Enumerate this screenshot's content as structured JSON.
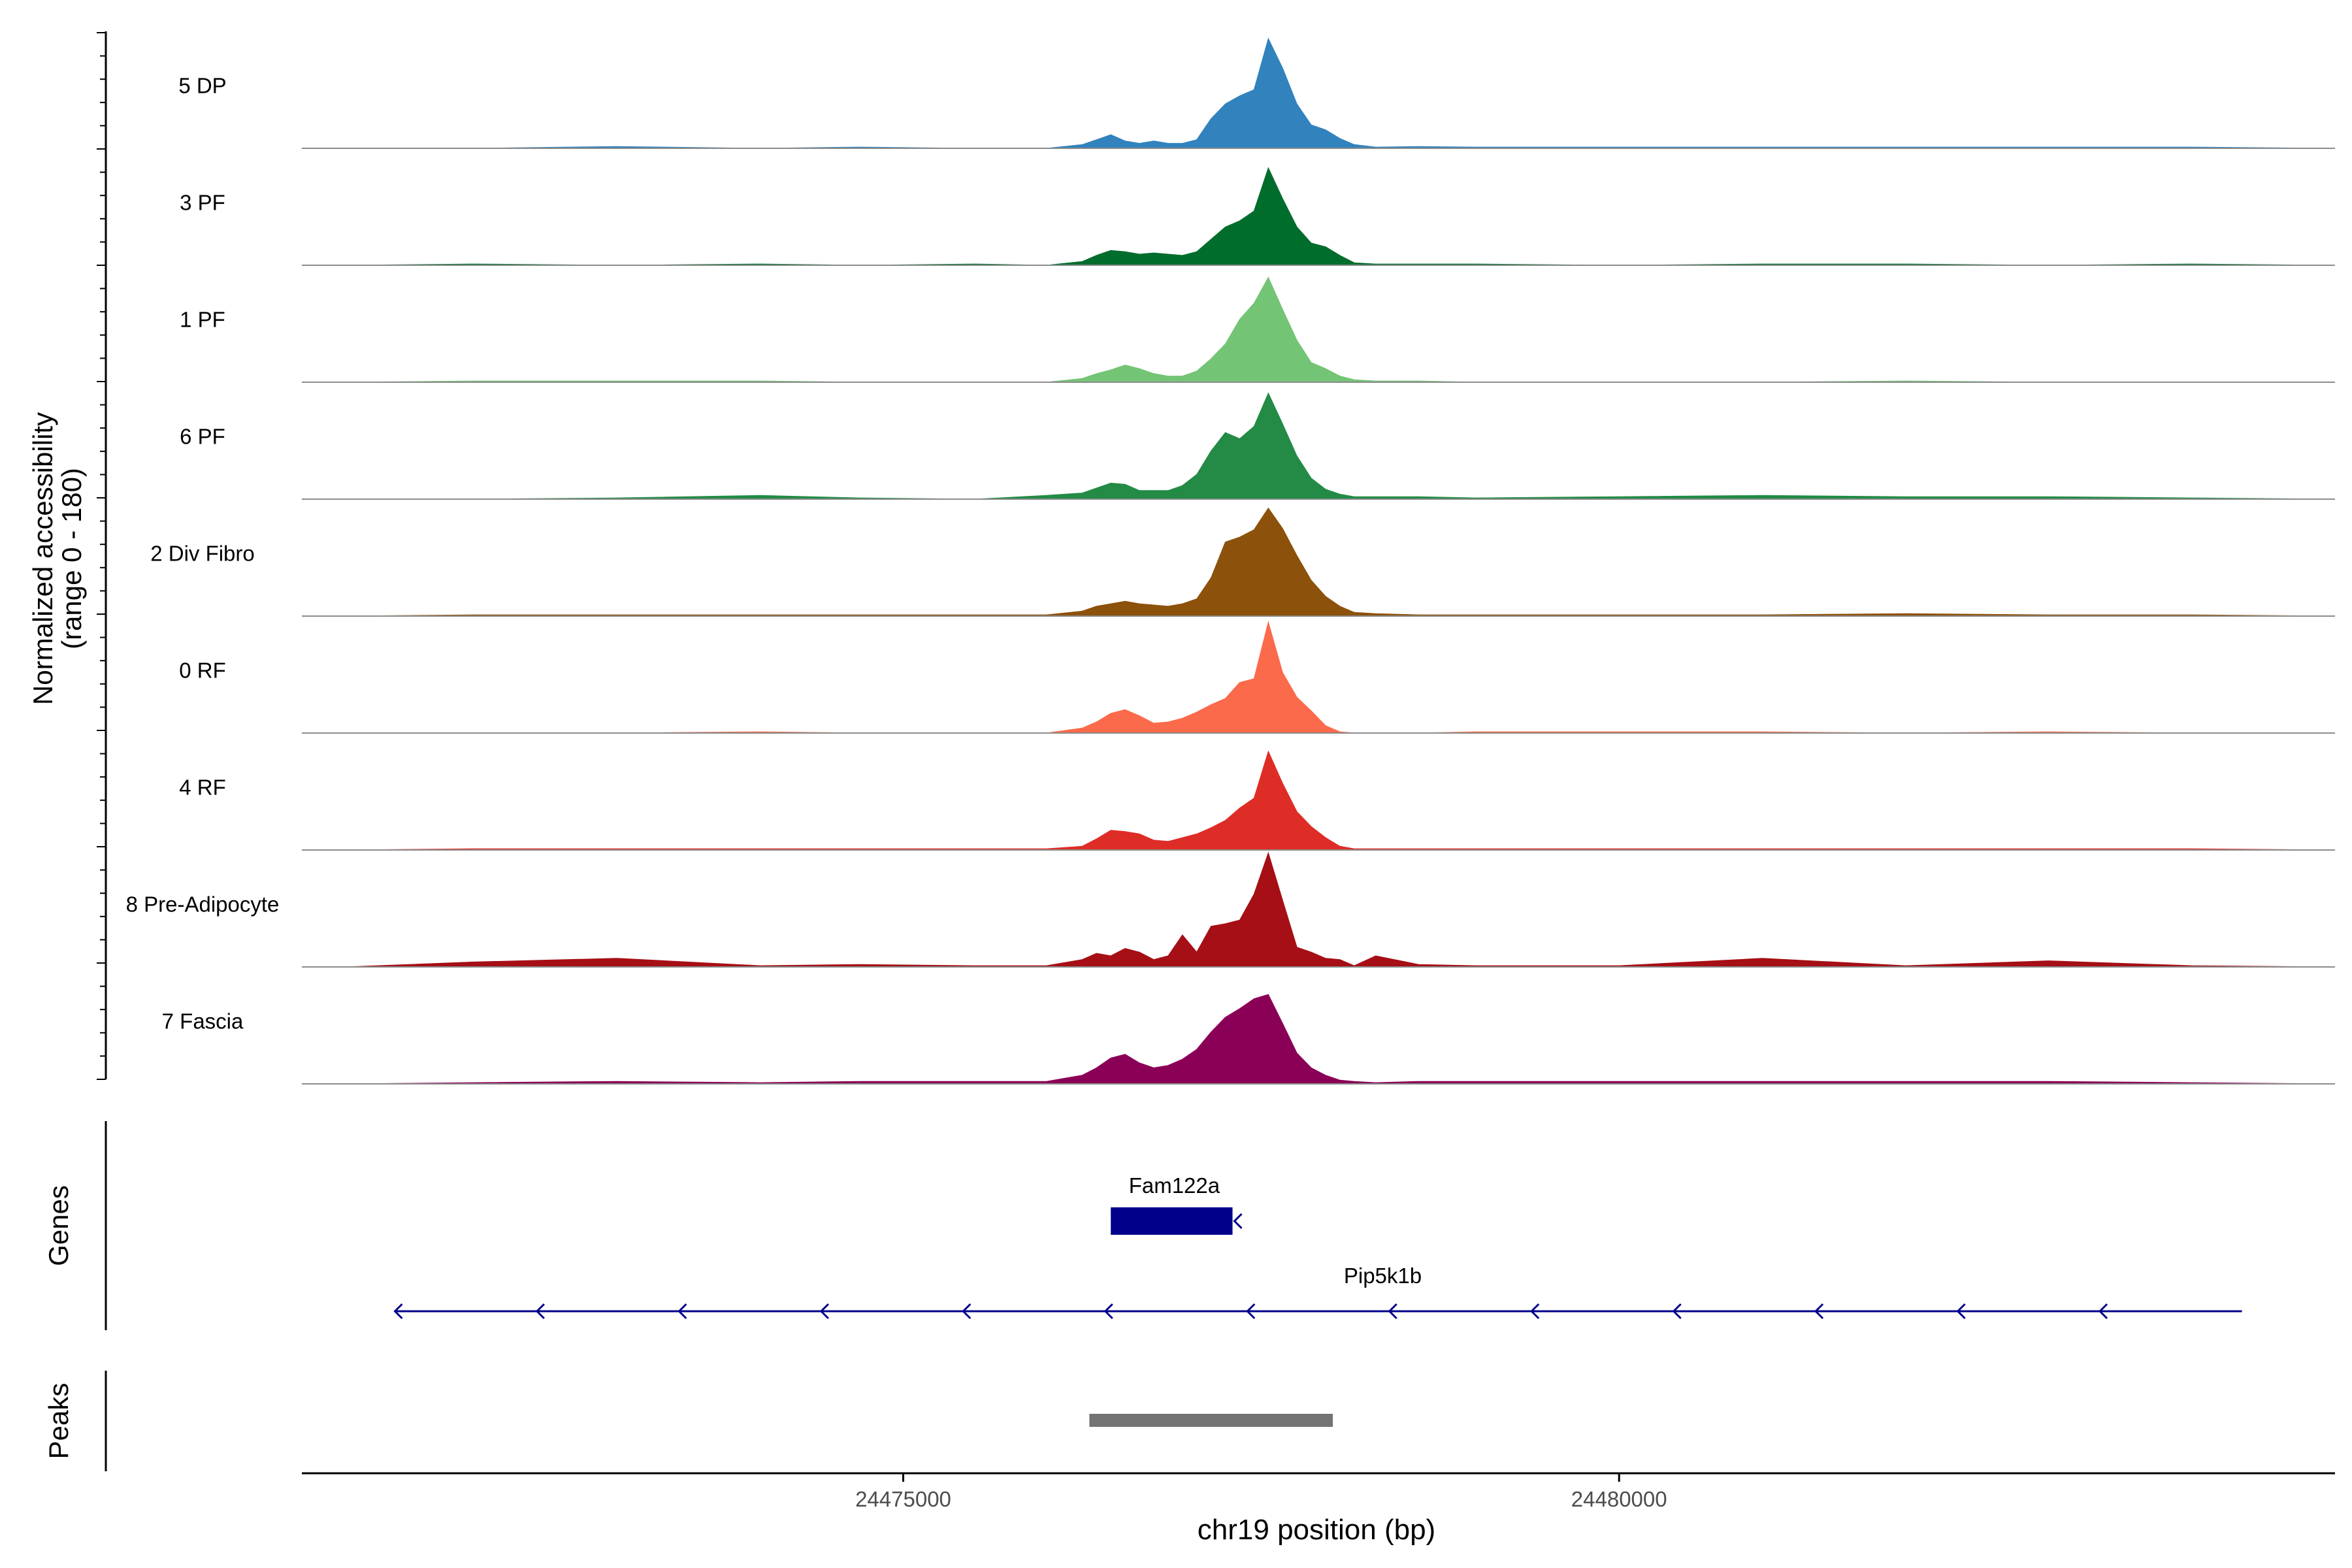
{
  "chart_data": {
    "type": "area",
    "title": "",
    "ylabel_lines": [
      "Normalized accessibility",
      "(range 0 - 180)"
    ],
    "xlabel": "chr19 position (bp)",
    "xlim": [
      24470800,
      24485000
    ],
    "ylim": [
      0,
      180
    ],
    "x_ticks": [
      24475000,
      24480000
    ],
    "x_tick_labels": [
      "24475000",
      "24480000"
    ],
    "x": [
      24471100,
      24472000,
      24473000,
      24474000,
      24474700,
      24475500,
      24476000,
      24476250,
      24476350,
      24476450,
      24476550,
      24476650,
      24476750,
      24476850,
      24476950,
      24477050,
      24477150,
      24477250,
      24477350,
      24477450,
      24477550,
      24477650,
      24477750,
      24477850,
      24477950,
      24478050,
      24478150,
      24478300,
      24478600,
      24479000,
      24480000,
      24481000,
      24482000,
      24483000,
      24484000,
      24485000
    ],
    "series": [
      {
        "name": "5 DP",
        "color": "#3182BD",
        "values": [
          0,
          0,
          3,
          0,
          2,
          0,
          0,
          6,
          14,
          22,
          12,
          8,
          12,
          8,
          8,
          14,
          48,
          72,
          85,
          95,
          178,
          130,
          72,
          38,
          30,
          16,
          6,
          2,
          3,
          2,
          2,
          2,
          2,
          2,
          2,
          0
        ]
      },
      {
        "name": "3 PF",
        "color": "#006D2C",
        "values": [
          0,
          2,
          0,
          2,
          0,
          2,
          0,
          6,
          16,
          24,
          22,
          18,
          20,
          18,
          16,
          22,
          42,
          62,
          72,
          88,
          158,
          108,
          62,
          36,
          30,
          16,
          4,
          2,
          2,
          2,
          0,
          2,
          2,
          0,
          2,
          0
        ]
      },
      {
        "name": "1 PF",
        "color": "#74C476",
        "values": [
          0,
          2,
          2,
          2,
          0,
          0,
          0,
          6,
          14,
          20,
          28,
          22,
          14,
          10,
          10,
          18,
          38,
          62,
          102,
          128,
          170,
          118,
          68,
          32,
          22,
          10,
          4,
          2,
          2,
          0,
          0,
          0,
          2,
          0,
          0,
          0
        ]
      },
      {
        "name": "6 PF",
        "color": "#238B45",
        "values": [
          0,
          0,
          2,
          6,
          2,
          0,
          6,
          10,
          18,
          26,
          24,
          14,
          14,
          14,
          22,
          40,
          78,
          108,
          98,
          118,
          172,
          122,
          70,
          34,
          16,
          8,
          4,
          4,
          4,
          2,
          4,
          6,
          4,
          4,
          2,
          0
        ]
      },
      {
        "name": "2 Div Fibro",
        "color": "#8C510A",
        "values": [
          0,
          2,
          2,
          2,
          2,
          2,
          2,
          8,
          16,
          20,
          24,
          20,
          18,
          16,
          20,
          28,
          62,
          120,
          128,
          140,
          175,
          142,
          98,
          58,
          32,
          16,
          6,
          4,
          2,
          2,
          2,
          2,
          4,
          2,
          2,
          0
        ]
      },
      {
        "name": "0 RF",
        "color": "#FB6A4A",
        "values": [
          0,
          0,
          0,
          2,
          0,
          0,
          0,
          8,
          18,
          32,
          38,
          28,
          16,
          18,
          24,
          34,
          46,
          56,
          82,
          88,
          180,
          98,
          58,
          36,
          12,
          2,
          0,
          0,
          0,
          2,
          2,
          2,
          0,
          2,
          0,
          0
        ]
      },
      {
        "name": "4 RF",
        "color": "#DE2D26",
        "values": [
          0,
          2,
          2,
          2,
          2,
          2,
          2,
          6,
          18,
          32,
          30,
          26,
          16,
          14,
          20,
          26,
          36,
          48,
          68,
          84,
          160,
          108,
          62,
          38,
          20,
          6,
          2,
          2,
          2,
          2,
          2,
          2,
          2,
          2,
          2,
          0
        ]
      },
      {
        "name": "8 Pre-Adipocyte",
        "color": "#A50F15",
        "values": [
          0,
          8,
          14,
          2,
          4,
          2,
          2,
          12,
          22,
          18,
          30,
          24,
          12,
          18,
          52,
          24,
          66,
          70,
          76,
          118,
          185,
          108,
          32,
          24,
          14,
          12,
          2,
          18,
          4,
          2,
          2,
          14,
          2,
          10,
          2,
          0
        ]
      },
      {
        "name": "7 Fascia",
        "color": "#8B0057",
        "values": [
          0,
          2,
          4,
          2,
          4,
          4,
          4,
          14,
          26,
          42,
          48,
          34,
          26,
          30,
          40,
          56,
          84,
          108,
          122,
          138,
          145,
          98,
          50,
          26,
          14,
          6,
          4,
          2,
          4,
          4,
          4,
          4,
          4,
          4,
          2,
          0
        ]
      }
    ]
  },
  "axes": {
    "genes_label": "Genes",
    "peaks_label": "Peaks"
  },
  "genes": [
    {
      "name": "Fam122a",
      "start": 24476450,
      "end": 24477300,
      "strand": "-"
    },
    {
      "name": "Pip5k1b",
      "start": 24471450,
      "end": 24484350,
      "strand": "-"
    }
  ],
  "peaks": [
    {
      "start": 24476300,
      "end": 24478000
    }
  ],
  "colors": {
    "gene": "#00008B",
    "peak": "#737373",
    "axis": "#000000",
    "baseline": "#8C8C8C"
  }
}
